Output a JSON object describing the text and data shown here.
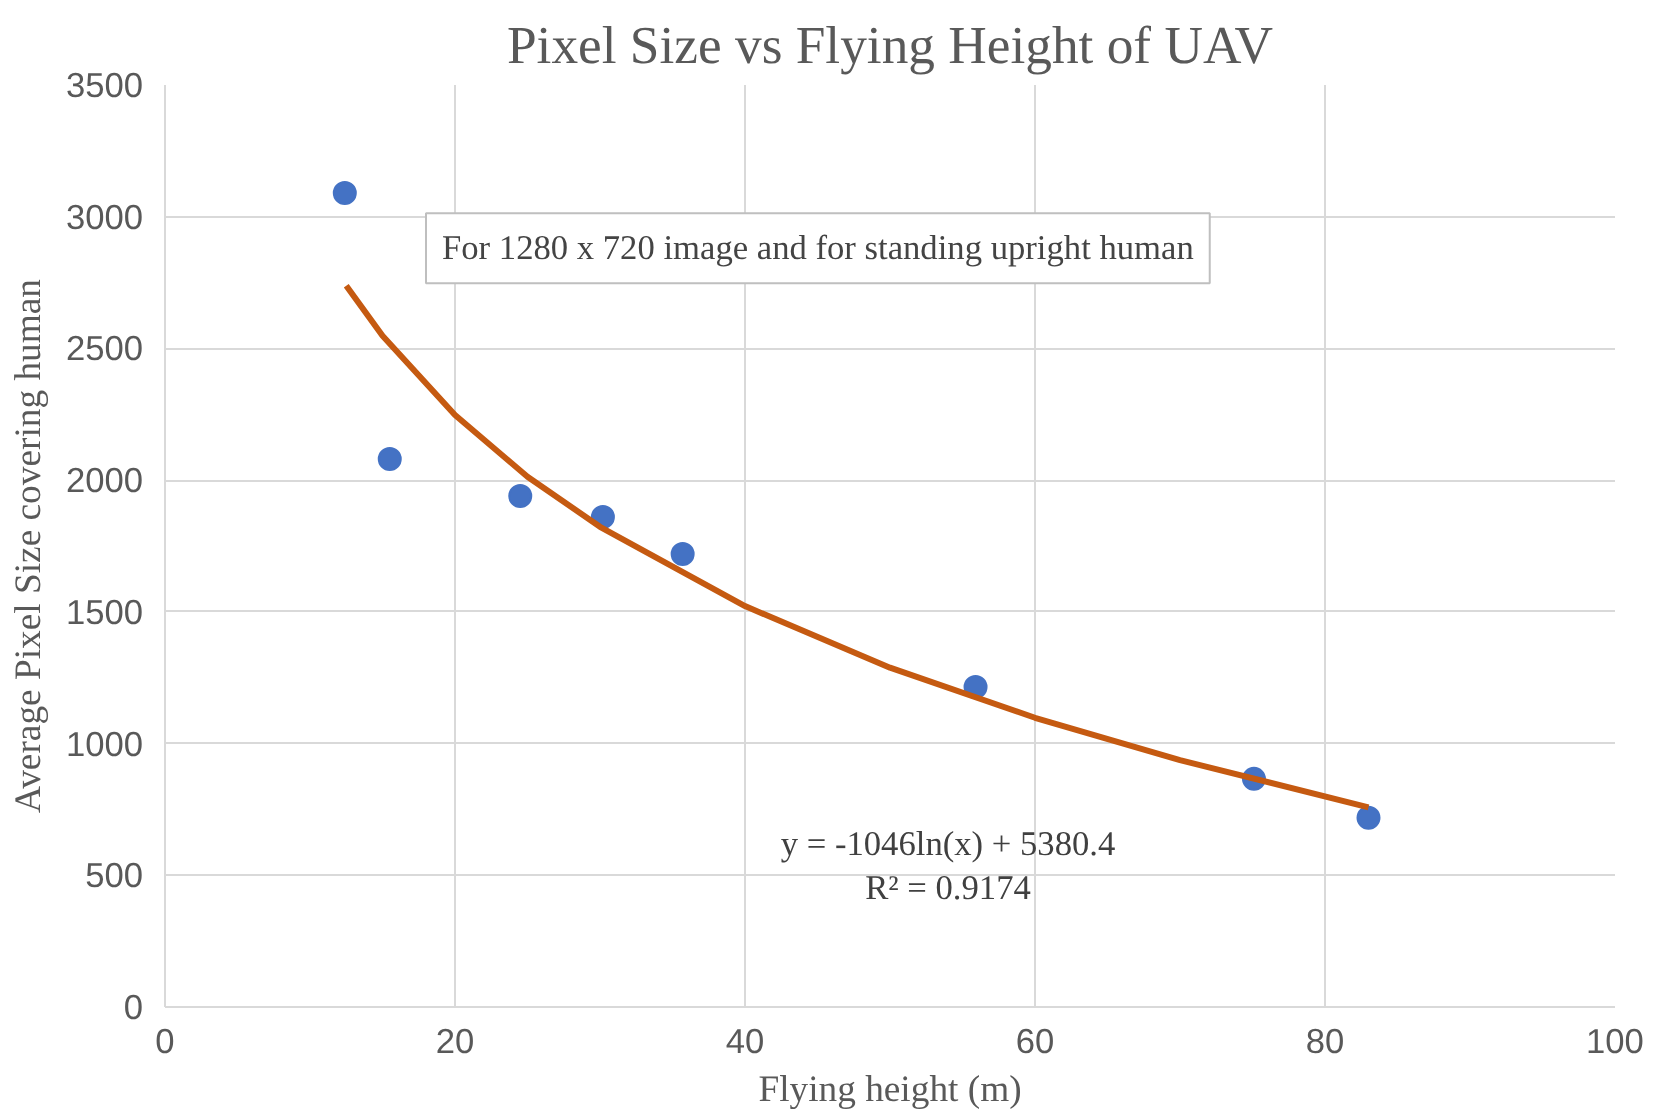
{
  "chart_data": {
    "type": "scatter",
    "title": "Pixel Size vs Flying Height of UAV",
    "xlabel": "Flying height (m)",
    "ylabel": "Average Pixel Size covering human",
    "xlim": [
      0,
      100
    ],
    "xticks": [
      0,
      20,
      40,
      60,
      80,
      100
    ],
    "ylim": [
      0,
      3500
    ],
    "yticks": [
      0,
      500,
      1000,
      1500,
      2000,
      2500,
      3000,
      3500
    ],
    "grid": true,
    "annotations": [
      "For 1280 x 720 image and for standing upright human",
      "y = -1046ln(x) + 5380.4",
      "R² = 0.9174"
    ],
    "series": [
      {
        "color": "#4472c4",
        "marker": "circle",
        "x": [
          12.4,
          15.5,
          24.5,
          30.2,
          35.7,
          55.9,
          75.1,
          83.0
        ],
        "values": [
          3090,
          2080,
          1940,
          1860,
          1720,
          1215,
          866,
          718
        ]
      },
      {
        "type": "line",
        "marker": "none",
        "color": "#c55a11",
        "line_style": "solid",
        "x": [
          12.5,
          15,
          20,
          25,
          30,
          40,
          50,
          60,
          70,
          83
        ],
        "values": [
          2738,
          2548,
          2247,
          2013,
          1823,
          1522,
          1288,
          1098,
          937,
          758
        ]
      }
    ]
  }
}
